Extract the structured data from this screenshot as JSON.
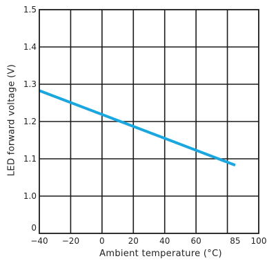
{
  "chart_data": {
    "type": "line",
    "xlabel": "Ambient temperature (°C)",
    "ylabel": "LED forward voltage (V)",
    "xlim": [
      -40,
      100
    ],
    "ylim": [
      0,
      1.5
    ],
    "y_axis_break": true,
    "grid": true,
    "x_ticks": [
      -40,
      -20,
      0,
      20,
      40,
      60,
      85,
      100
    ],
    "x_tick_labels": [
      "−40",
      "−20",
      "0",
      "20",
      "40",
      "60",
      "85",
      "100"
    ],
    "x_grid": [
      -40,
      -20,
      0,
      20,
      40,
      60,
      80,
      100
    ],
    "y_ticks": [
      0,
      1.0,
      1.1,
      1.2,
      1.3,
      1.4,
      1.5
    ],
    "y_tick_labels": [
      "0",
      "1.0",
      "1.1",
      "1.2",
      "1.3",
      "1.4",
      "1.5"
    ],
    "series": [
      {
        "color": "#1aa7e0",
        "x": [
          -40,
          85
        ],
        "y": [
          1.283,
          1.083
        ]
      }
    ]
  }
}
